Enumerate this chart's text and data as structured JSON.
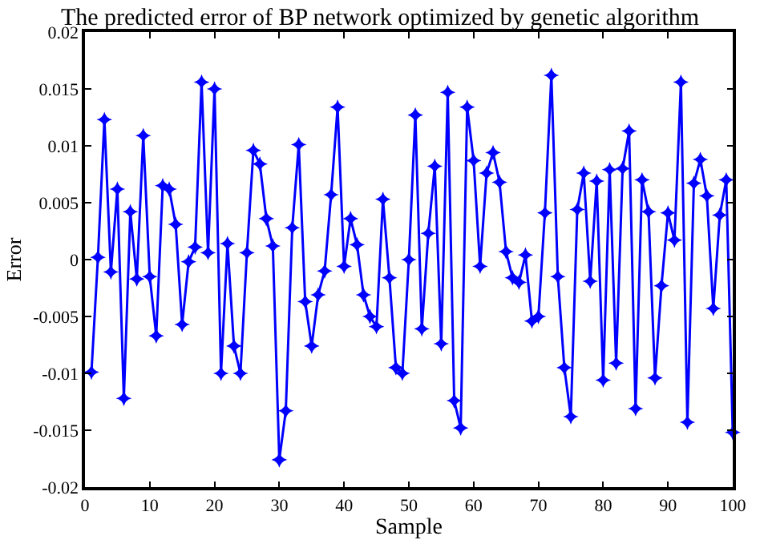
{
  "chart_data": {
    "type": "line",
    "title": "The predicted error of BP network optimized by genetic algorithm",
    "xlabel": "Sample",
    "ylabel": "Error",
    "x": [
      1,
      2,
      3,
      4,
      5,
      6,
      7,
      8,
      9,
      10,
      11,
      12,
      13,
      14,
      15,
      16,
      17,
      18,
      19,
      20,
      21,
      22,
      23,
      24,
      25,
      26,
      27,
      28,
      29,
      30,
      31,
      32,
      33,
      34,
      35,
      36,
      37,
      38,
      39,
      40,
      41,
      42,
      43,
      44,
      45,
      46,
      47,
      48,
      49,
      50,
      51,
      52,
      53,
      54,
      55,
      56,
      57,
      58,
      59,
      60,
      61,
      62,
      63,
      64,
      65,
      66,
      67,
      68,
      69,
      70,
      71,
      72,
      73,
      74,
      75,
      76,
      77,
      78,
      79,
      80,
      81,
      82,
      83,
      84,
      85,
      86,
      87,
      88,
      89,
      90,
      91,
      92,
      93,
      94,
      95,
      96,
      97,
      98,
      99,
      100
    ],
    "series": [
      {
        "color": "#0000ff",
        "values": [
          -0.0099,
          0.0002,
          0.0123,
          -0.0011,
          0.0062,
          -0.0122,
          0.0042,
          -0.0017,
          0.0109,
          -0.0015,
          -0.0067,
          0.0065,
          0.0062,
          0.0031,
          -0.0057,
          -0.0002,
          0.0011,
          0.0156,
          0.0006,
          0.015,
          -0.01,
          0.0014,
          -0.0076,
          -0.01,
          0.0006,
          0.0096,
          0.0084,
          0.0036,
          0.0012,
          -0.0176,
          -0.0133,
          0.0028,
          0.0101,
          -0.0037,
          -0.0076,
          -0.0031,
          -0.001,
          0.0057,
          0.0134,
          -0.0006,
          0.0036,
          0.0013,
          -0.0031,
          -0.005,
          -0.0059,
          0.0053,
          -0.0016,
          -0.0095,
          -0.01,
          0.0,
          0.0127,
          -0.0061,
          0.0023,
          0.0082,
          -0.0074,
          0.0147,
          -0.0124,
          -0.0148,
          0.0134,
          0.0087,
          -0.0006,
          0.0076,
          0.0094,
          0.0068,
          0.0007,
          -0.0016,
          -0.002,
          0.0004,
          -0.0054,
          -0.005,
          0.0041,
          0.0162,
          -0.0015,
          -0.0095,
          -0.0138,
          0.0044,
          0.0076,
          -0.0019,
          0.0069,
          -0.0106,
          0.0079,
          -0.0091,
          0.008,
          0.0113,
          -0.0131,
          0.007,
          0.0042,
          -0.0104,
          -0.0023,
          0.0041,
          0.0017,
          0.0156,
          -0.0143,
          0.0067,
          0.0088,
          0.0056,
          -0.0043,
          0.0039,
          0.007,
          -0.0152
        ]
      }
    ],
    "xlim": [
      0,
      100
    ],
    "xticks": [
      0,
      10,
      20,
      30,
      40,
      50,
      60,
      70,
      80,
      90,
      100
    ],
    "ylim": [
      -0.02,
      0.02
    ],
    "yticks": [
      -0.02,
      -0.015,
      -0.01,
      -0.005,
      0,
      0.005,
      0.01,
      0.015,
      0.02
    ],
    "marker": "star",
    "line_style": "solid"
  }
}
